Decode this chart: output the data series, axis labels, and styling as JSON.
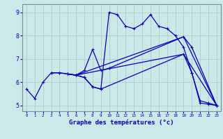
{
  "title": "Graphe des températures (°c)",
  "bg_color": "#cce8e8",
  "grid_color": "#aacfcf",
  "line_color": "#0000bb",
  "xlim": [
    -0.5,
    23.5
  ],
  "ylim": [
    4.75,
    9.35
  ],
  "xticks": [
    0,
    1,
    2,
    3,
    4,
    5,
    6,
    7,
    8,
    9,
    10,
    11,
    12,
    13,
    14,
    15,
    16,
    17,
    18,
    19,
    20,
    21,
    22,
    23
  ],
  "yticks": [
    5,
    6,
    7,
    8,
    9
  ],
  "line1_x": [
    0,
    1,
    2,
    3,
    4,
    5,
    6,
    7,
    8,
    9,
    10,
    11,
    12,
    13,
    14,
    15,
    16,
    17,
    18,
    19,
    20,
    21,
    22,
    23
  ],
  "line1_y": [
    5.7,
    5.3,
    6.0,
    6.4,
    6.4,
    6.35,
    6.3,
    6.2,
    5.8,
    5.7,
    9.0,
    8.9,
    8.4,
    8.3,
    8.5,
    8.9,
    8.4,
    8.3,
    8.0,
    7.5,
    6.4,
    5.1,
    5.05,
    5.0
  ],
  "line2_x": [
    5,
    6,
    19,
    23
  ],
  "line2_y": [
    6.35,
    6.3,
    7.95,
    5.0
  ],
  "line3_x": [
    5,
    6,
    19,
    23
  ],
  "line3_y": [
    6.35,
    6.3,
    7.2,
    5.0
  ],
  "line4_x": [
    5,
    6,
    7,
    8,
    9,
    10,
    19,
    20,
    23
  ],
  "line4_y": [
    6.35,
    6.3,
    6.5,
    7.4,
    6.5,
    6.6,
    7.95,
    7.5,
    5.0
  ],
  "line5_x": [
    3,
    4,
    5,
    6,
    7,
    8,
    9,
    19,
    20,
    21,
    22,
    23
  ],
  "line5_y": [
    6.4,
    6.4,
    6.35,
    6.3,
    6.2,
    5.8,
    5.7,
    7.2,
    6.4,
    5.2,
    5.1,
    5.0
  ]
}
